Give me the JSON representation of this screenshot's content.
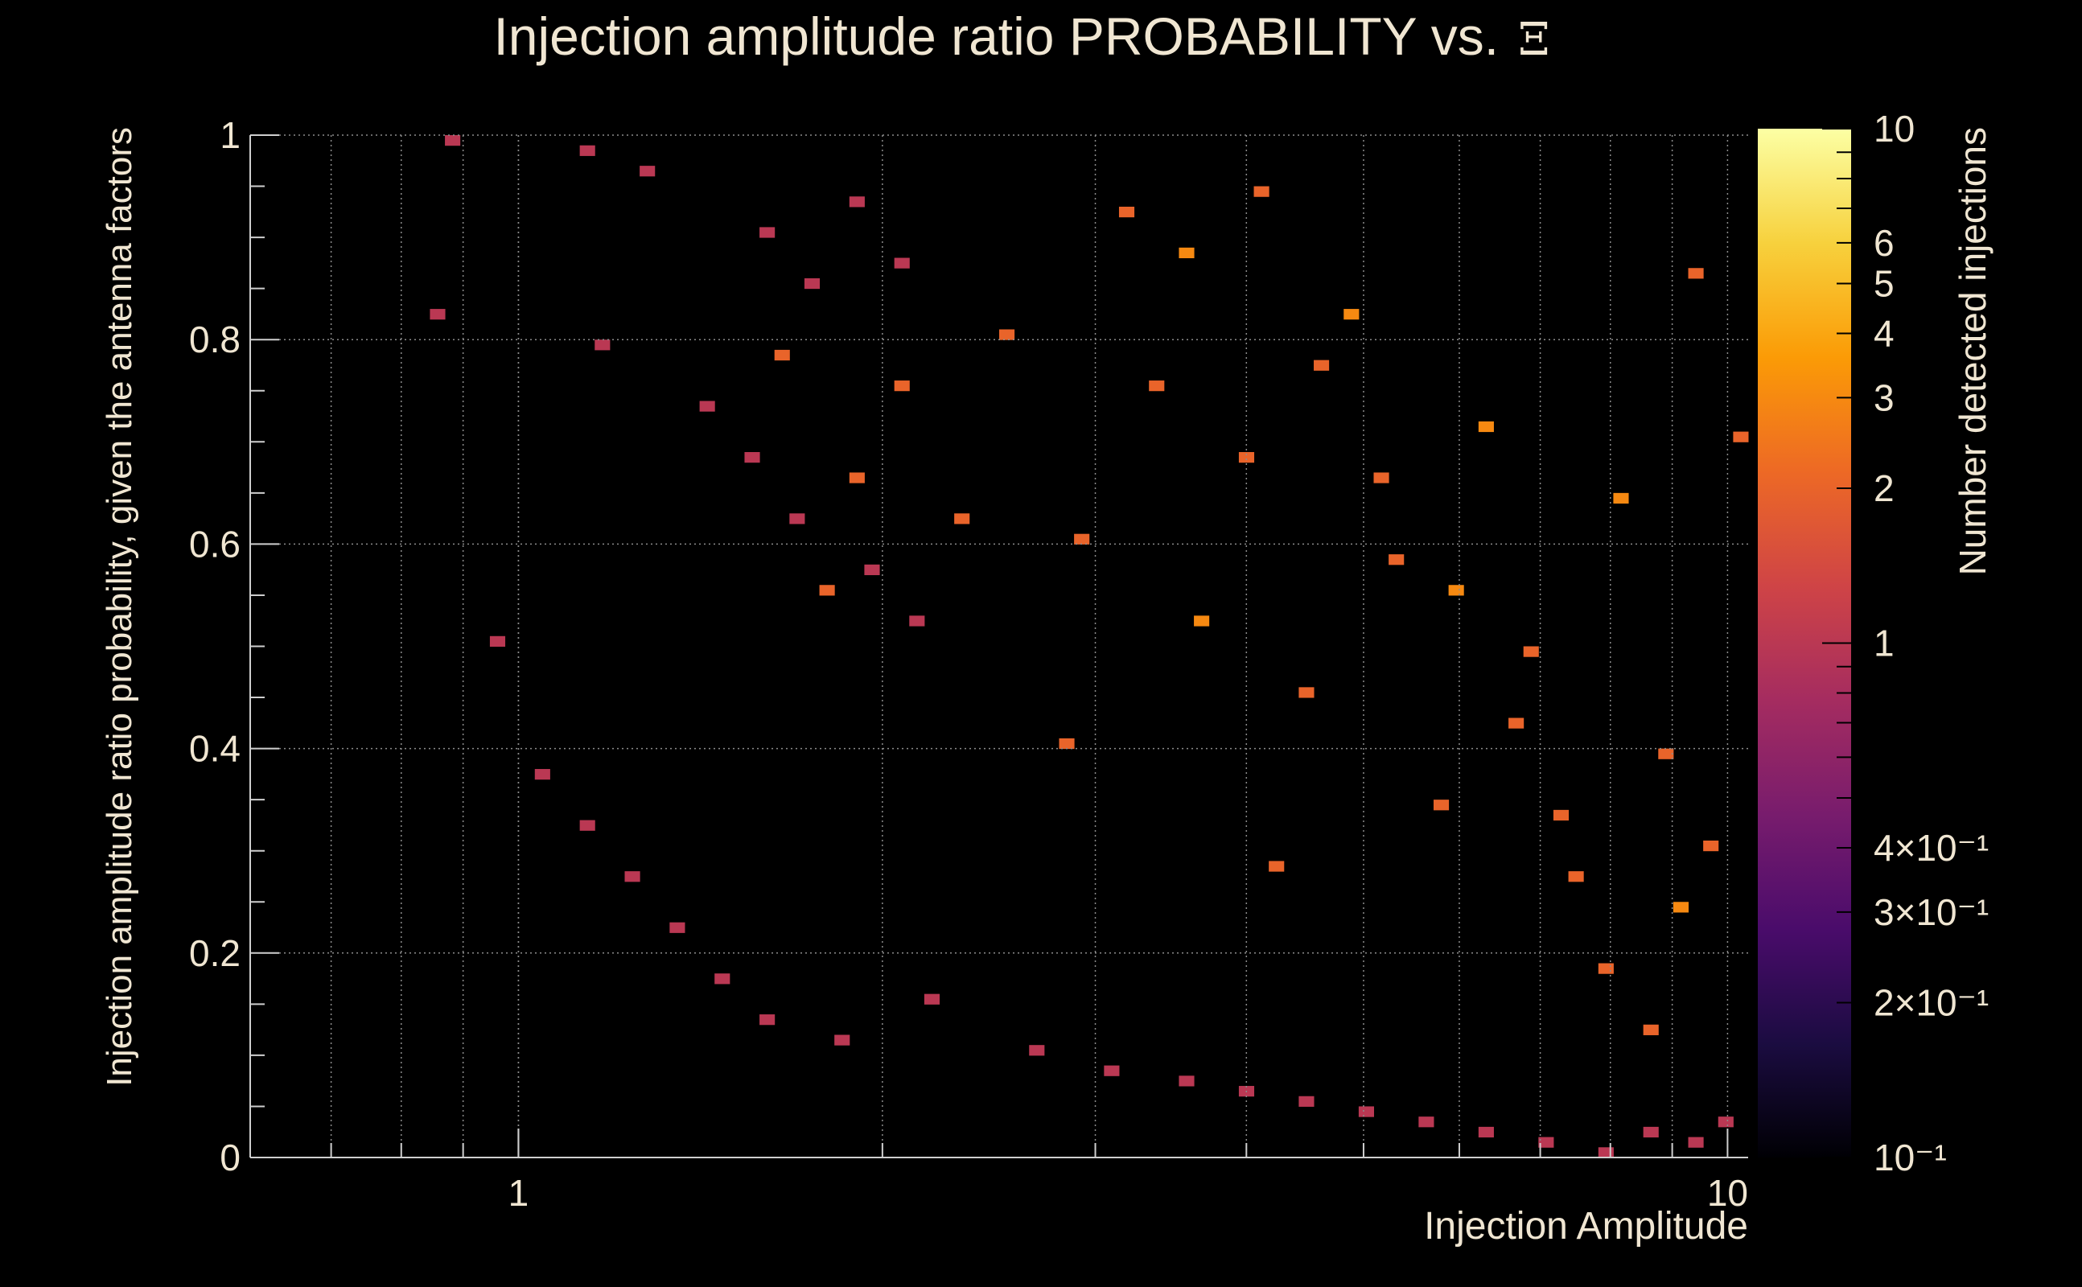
{
  "chart_data": {
    "type": "heatmap",
    "title_prefix": "Injection amplitude ratio PROBABILITY vs.",
    "title_symbol": "Ξ",
    "xlabel": "Injection Amplitude",
    "ylabel": "Injection amplitude ratio probability, given the antenna factors",
    "zlabel": "Number detected injections",
    "x_scale": "log",
    "xlim": [
      0.6,
      10.4
    ],
    "x_ticks": [
      {
        "value": 1,
        "label": "1"
      },
      {
        "value": 10,
        "label": "10"
      }
    ],
    "ylim": [
      0,
      1
    ],
    "y_ticks": [
      {
        "value": 0,
        "label": "0"
      },
      {
        "value": 0.2,
        "label": "0.2"
      },
      {
        "value": 0.4,
        "label": "0.4"
      },
      {
        "value": 0.6,
        "label": "0.6"
      },
      {
        "value": 0.8,
        "label": "0.8"
      },
      {
        "value": 1,
        "label": "1"
      }
    ],
    "z_scale": "log",
    "zlim": [
      0.1,
      10
    ],
    "z_ticks": [
      {
        "value": 10,
        "label": "10"
      },
      {
        "value": 6,
        "label": "6"
      },
      {
        "value": 5,
        "label": "5"
      },
      {
        "value": 4,
        "label": "4"
      },
      {
        "value": 3,
        "label": "3"
      },
      {
        "value": 2,
        "label": "2"
      },
      {
        "value": 1,
        "label": "1"
      },
      {
        "value": 0.4,
        "label": "4×10⁻¹"
      },
      {
        "value": 0.3,
        "label": "3×10⁻¹"
      },
      {
        "value": 0.2,
        "label": "2×10⁻¹"
      },
      {
        "value": 0.1,
        "label": "10⁻¹"
      }
    ],
    "grid": true,
    "colormap": [
      "#000004",
      "#1b0c41",
      "#4a0c6b",
      "#781c6d",
      "#a52c60",
      "#cf4446",
      "#ed6925",
      "#fb9b06",
      "#f7d13d",
      "#fcffa4"
    ],
    "background_color": "#000000",
    "n_x_bins": 100,
    "n_y_bins": 100,
    "cells": [
      [
        13,
        99,
        1
      ],
      [
        22,
        98,
        1
      ],
      [
        26,
        96,
        1
      ],
      [
        34,
        90,
        1
      ],
      [
        37,
        85,
        1
      ],
      [
        40,
        93,
        1
      ],
      [
        43,
        87,
        1
      ],
      [
        12,
        82,
        1
      ],
      [
        23,
        79,
        1
      ],
      [
        30,
        73,
        1
      ],
      [
        33,
        68,
        1
      ],
      [
        36,
        62,
        1
      ],
      [
        41,
        57,
        1
      ],
      [
        44,
        52,
        1
      ],
      [
        16,
        50,
        1
      ],
      [
        19,
        37,
        1
      ],
      [
        22,
        32,
        1
      ],
      [
        25,
        27,
        1
      ],
      [
        28,
        22,
        1
      ],
      [
        31,
        17,
        1
      ],
      [
        34,
        13,
        1
      ],
      [
        39,
        11,
        1
      ],
      [
        45,
        15,
        1
      ],
      [
        52,
        10,
        1
      ],
      [
        57,
        8,
        1
      ],
      [
        62,
        7,
        1
      ],
      [
        66,
        6,
        1
      ],
      [
        70,
        5,
        1
      ],
      [
        74,
        4,
        1
      ],
      [
        78,
        3,
        1
      ],
      [
        82,
        2,
        1
      ],
      [
        86,
        1,
        1
      ],
      [
        90,
        0,
        1
      ],
      [
        93,
        2,
        1
      ],
      [
        96,
        1,
        1
      ],
      [
        98,
        3,
        1
      ],
      [
        55,
        60,
        2
      ],
      [
        60,
        75,
        2
      ],
      [
        63,
        52,
        3
      ],
      [
        66,
        68,
        2
      ],
      [
        70,
        45,
        2
      ],
      [
        73,
        82,
        3
      ],
      [
        76,
        58,
        2
      ],
      [
        79,
        34,
        2
      ],
      [
        82,
        71,
        3
      ],
      [
        85,
        49,
        2
      ],
      [
        88,
        27,
        2
      ],
      [
        91,
        64,
        3
      ],
      [
        94,
        39,
        2
      ],
      [
        96,
        86,
        2
      ],
      [
        58,
        92,
        2
      ],
      [
        62,
        88,
        3
      ],
      [
        67,
        94,
        2
      ],
      [
        71,
        77,
        2
      ],
      [
        75,
        66,
        2
      ],
      [
        80,
        55,
        3
      ],
      [
        84,
        42,
        2
      ],
      [
        87,
        33,
        2
      ],
      [
        90,
        18,
        2
      ],
      [
        93,
        12,
        2
      ],
      [
        95,
        24,
        3
      ],
      [
        97,
        30,
        2
      ],
      [
        99,
        70,
        2
      ],
      [
        50,
        80,
        2
      ],
      [
        47,
        62,
        2
      ],
      [
        43,
        75,
        2
      ],
      [
        40,
        66,
        2
      ],
      [
        38,
        55,
        2
      ],
      [
        35,
        78,
        2
      ],
      [
        54,
        40,
        2
      ],
      [
        68,
        28,
        2
      ]
    ]
  }
}
